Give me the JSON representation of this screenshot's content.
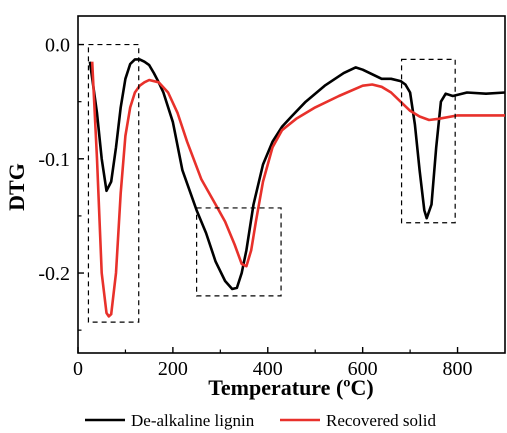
{
  "chart_data": {
    "type": "line",
    "title": "",
    "xlabel": "Temperature (ºC)",
    "ylabel": "DTG",
    "xlim": [
      0,
      900
    ],
    "ylim": [
      -0.27,
      0.025
    ],
    "x_ticks": [
      "0",
      "200",
      "400",
      "600",
      "800"
    ],
    "y_ticks": [
      "0.0",
      "-0.1",
      "-0.2"
    ],
    "grid": false,
    "legend_position": "bottom",
    "series": [
      {
        "name": "De-alkaline lignin",
        "color": "#000000",
        "x": [
          25,
          40,
          50,
          60,
          70,
          80,
          90,
          100,
          110,
          120,
          130,
          140,
          150,
          160,
          170,
          180,
          200,
          220,
          250,
          270,
          290,
          310,
          325,
          335,
          345,
          355,
          370,
          390,
          410,
          430,
          450,
          480,
          520,
          560,
          585,
          600,
          640,
          660,
          680,
          690,
          700,
          710,
          720,
          730,
          735,
          745,
          755,
          765,
          775,
          790,
          820,
          860,
          900
        ],
        "y": [
          -0.015,
          -0.06,
          -0.1,
          -0.128,
          -0.12,
          -0.09,
          -0.055,
          -0.03,
          -0.017,
          -0.013,
          -0.013,
          -0.015,
          -0.018,
          -0.025,
          -0.033,
          -0.042,
          -0.068,
          -0.11,
          -0.145,
          -0.165,
          -0.19,
          -0.207,
          -0.214,
          -0.213,
          -0.2,
          -0.18,
          -0.14,
          -0.105,
          -0.085,
          -0.072,
          -0.063,
          -0.05,
          -0.036,
          -0.025,
          -0.02,
          -0.022,
          -0.03,
          -0.03,
          -0.032,
          -0.035,
          -0.042,
          -0.07,
          -0.11,
          -0.145,
          -0.152,
          -0.14,
          -0.09,
          -0.05,
          -0.043,
          -0.045,
          -0.042,
          -0.043,
          -0.042
        ]
      },
      {
        "name": "Recovered solid",
        "color": "#e8312b",
        "x": [
          30,
          40,
          50,
          60,
          65,
          70,
          80,
          90,
          100,
          110,
          120,
          130,
          140,
          150,
          170,
          190,
          210,
          230,
          260,
          290,
          310,
          330,
          345,
          355,
          365,
          375,
          390,
          410,
          430,
          460,
          500,
          550,
          600,
          620,
          640,
          660,
          680,
          700,
          720,
          740,
          760,
          800,
          850,
          900
        ],
        "y": [
          -0.015,
          -0.1,
          -0.2,
          -0.235,
          -0.238,
          -0.236,
          -0.2,
          -0.13,
          -0.08,
          -0.055,
          -0.042,
          -0.036,
          -0.033,
          -0.031,
          -0.033,
          -0.042,
          -0.06,
          -0.085,
          -0.118,
          -0.14,
          -0.155,
          -0.175,
          -0.192,
          -0.194,
          -0.18,
          -0.155,
          -0.12,
          -0.09,
          -0.075,
          -0.065,
          -0.055,
          -0.045,
          -0.036,
          -0.035,
          -0.037,
          -0.042,
          -0.05,
          -0.058,
          -0.063,
          -0.066,
          -0.065,
          -0.062,
          -0.062,
          -0.062
        ]
      }
    ],
    "annotations": [
      {
        "shape": "dashed-box",
        "x": [
          22,
          128
        ],
        "y": [
          -0.243,
          0.0
        ]
      },
      {
        "shape": "dashed-box",
        "x": [
          250,
          428
        ],
        "y": [
          -0.22,
          -0.143
        ]
      },
      {
        "shape": "dashed-box",
        "x": [
          682,
          795
        ],
        "y": [
          -0.156,
          -0.013
        ]
      }
    ]
  }
}
